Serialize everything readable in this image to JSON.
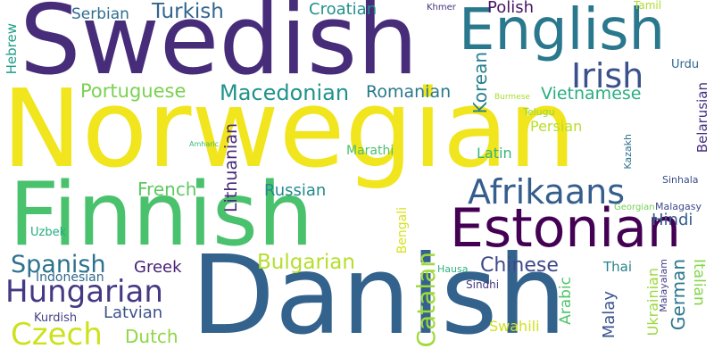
{
  "words": {
    "swedish": "Swedish",
    "norwegian": "Norwegian",
    "danish": "Danish",
    "finnish": "Finnish",
    "english": "English",
    "estonian": "Estonian",
    "afrikaans": "Afrikaans",
    "irish": "Irish",
    "hungarian": "Hungarian",
    "czech": "Czech",
    "spanish": "Spanish",
    "macedonian": "Macedonian",
    "portuguese": "Portuguese",
    "bulgarian": "Bulgarian",
    "chinese": "Chinese",
    "catalan": "Catalan",
    "turkish": "Turkish",
    "serbian": "Serbian",
    "croatian": "Croatian",
    "polish": "Polish",
    "romanian": "Romanian",
    "vietnamese": "Vietnamese",
    "persian": "Persian",
    "latin": "Latin",
    "marathi": "Marathi",
    "lithuanian": "Lithuanian",
    "french": "French",
    "russian": "Russian",
    "greek": "Greek",
    "indonesian": "Indonesian",
    "latvian": "Latvian",
    "kurdish": "Kurdish",
    "dutch": "Dutch",
    "german": "German",
    "hindi": "Hindi",
    "korean": "Korean",
    "ukrainian": "Ukrainian",
    "italian": "Italian",
    "malay": "Malay",
    "arabic": "Arabic",
    "swahili": "Swahili",
    "bengali": "Bengali",
    "thai": "Thai",
    "belarusian": "Belarusian",
    "kazakh": "Kazakh",
    "urdu": "Urdu",
    "tamil": "Tamil",
    "khmer": "Khmer",
    "hebrew": "Hebrew",
    "uzbek": "Uzbek",
    "sindhi": "Sindhi",
    "hausa": "Hausa",
    "telugu": "Telugu",
    "burmese": "Burmese",
    "amharic": "Amharic",
    "georgian": "Georgian",
    "malagasy": "Malagasy",
    "sinhala": "Sinhala",
    "malayalam": "Malayalam"
  }
}
